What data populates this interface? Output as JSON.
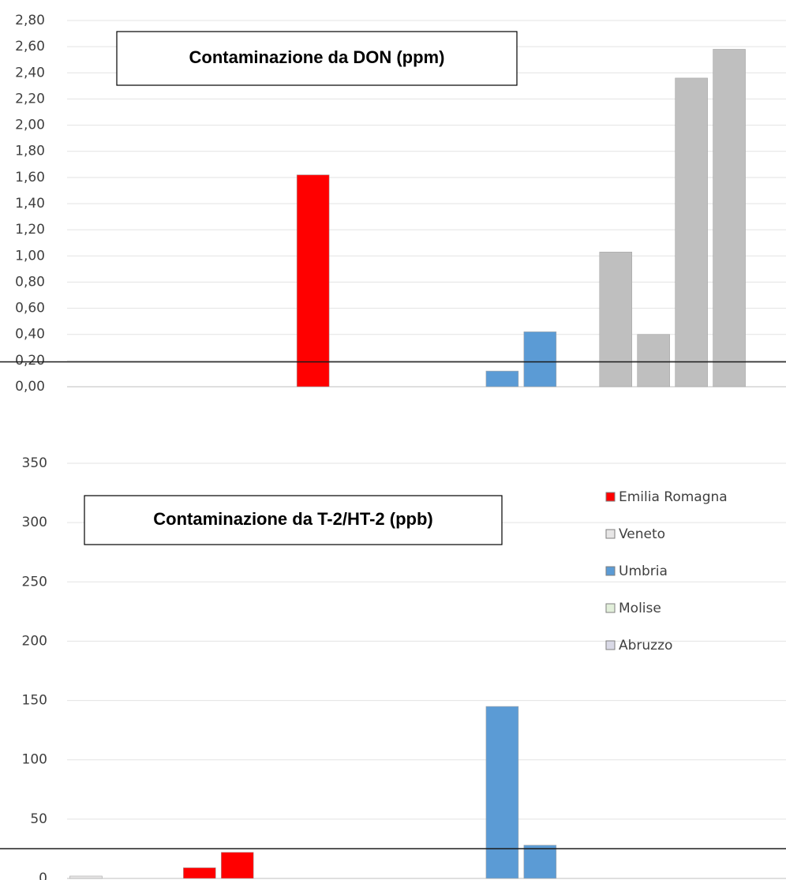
{
  "chart_data": [
    {
      "type": "bar",
      "title": "Contaminazione da DON (ppm)",
      "categories": [
        null,
        null,
        null,
        null,
        null,
        null,
        null,
        null,
        null,
        null,
        null,
        null,
        null,
        null,
        null,
        null,
        null,
        null,
        null
      ],
      "series": [
        {
          "color": "#ff0000",
          "values": [
            null,
            null,
            null,
            null,
            null,
            null,
            1.62,
            null,
            null,
            null,
            null,
            null,
            null,
            null,
            null,
            null,
            null,
            null,
            null
          ]
        },
        {
          "color": "#5b9bd5",
          "values": [
            null,
            null,
            null,
            null,
            null,
            null,
            null,
            null,
            null,
            null,
            null,
            0.12,
            0.42,
            null,
            null,
            null,
            null,
            null,
            null
          ]
        },
        {
          "color": "#bfbfbf",
          "values": [
            null,
            null,
            null,
            null,
            null,
            null,
            null,
            null,
            null,
            null,
            null,
            null,
            null,
            null,
            1.03,
            0.4,
            2.36,
            2.58,
            null
          ]
        }
      ],
      "threshold": 0.19,
      "ylim": [
        0,
        2.8
      ],
      "yticks": [
        {
          "value": 0,
          "label": "0,00"
        },
        {
          "value": 0.2,
          "label": "0,20"
        },
        {
          "value": 0.4,
          "label": "0,40"
        },
        {
          "value": 0.6,
          "label": "0,60"
        },
        {
          "value": 0.8,
          "label": "0,80"
        },
        {
          "value": 1.0,
          "label": "1,00"
        },
        {
          "value": 1.2,
          "label": "1,20"
        },
        {
          "value": 1.4,
          "label": "1,40"
        },
        {
          "value": 1.6,
          "label": "1,60"
        },
        {
          "value": 1.8,
          "label": "1,80"
        },
        {
          "value": 2.0,
          "label": "2,00"
        },
        {
          "value": 2.2,
          "label": "2,20"
        },
        {
          "value": 2.4,
          "label": "2,40"
        },
        {
          "value": 2.6,
          "label": "2,60"
        },
        {
          "value": 2.8,
          "label": "2,80"
        }
      ],
      "grid": true
    },
    {
      "type": "bar",
      "title": "Contaminazione da T-2/HT-2 (ppb)",
      "categories": [
        null,
        null,
        null,
        null,
        null,
        null,
        null,
        null,
        null,
        null,
        null,
        null,
        null,
        null,
        null,
        null,
        null,
        null,
        null
      ],
      "series": [
        {
          "name": "Emilia Romagna",
          "color": "#ff0000",
          "values": [
            null,
            null,
            null,
            9,
            22,
            null,
            null,
            null,
            null,
            null,
            null,
            null,
            null,
            null,
            null,
            null,
            null,
            null,
            null
          ]
        },
        {
          "name": "Veneto",
          "color": "#e7e6e6",
          "values": [
            2,
            null,
            null,
            null,
            null,
            null,
            null,
            null,
            null,
            null,
            null,
            null,
            null,
            null,
            null,
            null,
            null,
            null,
            null
          ]
        },
        {
          "name": "Umbria",
          "color": "#5b9bd5",
          "values": [
            null,
            null,
            null,
            null,
            null,
            null,
            null,
            null,
            null,
            null,
            null,
            145,
            28,
            null,
            null,
            null,
            null,
            null,
            null
          ]
        },
        {
          "name": "Molise",
          "color": "#e2efda",
          "values": [
            null,
            null,
            null,
            null,
            null,
            null,
            null,
            null,
            null,
            null,
            null,
            null,
            null,
            null,
            null,
            null,
            null,
            null,
            null
          ]
        },
        {
          "name": "Abruzzo",
          "color": "#d9d9e6",
          "values": [
            null,
            null,
            null,
            null,
            null,
            null,
            null,
            null,
            null,
            null,
            null,
            null,
            null,
            null,
            null,
            null,
            null,
            null,
            null
          ]
        }
      ],
      "threshold": 25,
      "ylim": [
        0,
        350
      ],
      "yticks": [
        0,
        50,
        100,
        150,
        200,
        250,
        300,
        350
      ],
      "grid": true,
      "legend": "top-right"
    }
  ]
}
